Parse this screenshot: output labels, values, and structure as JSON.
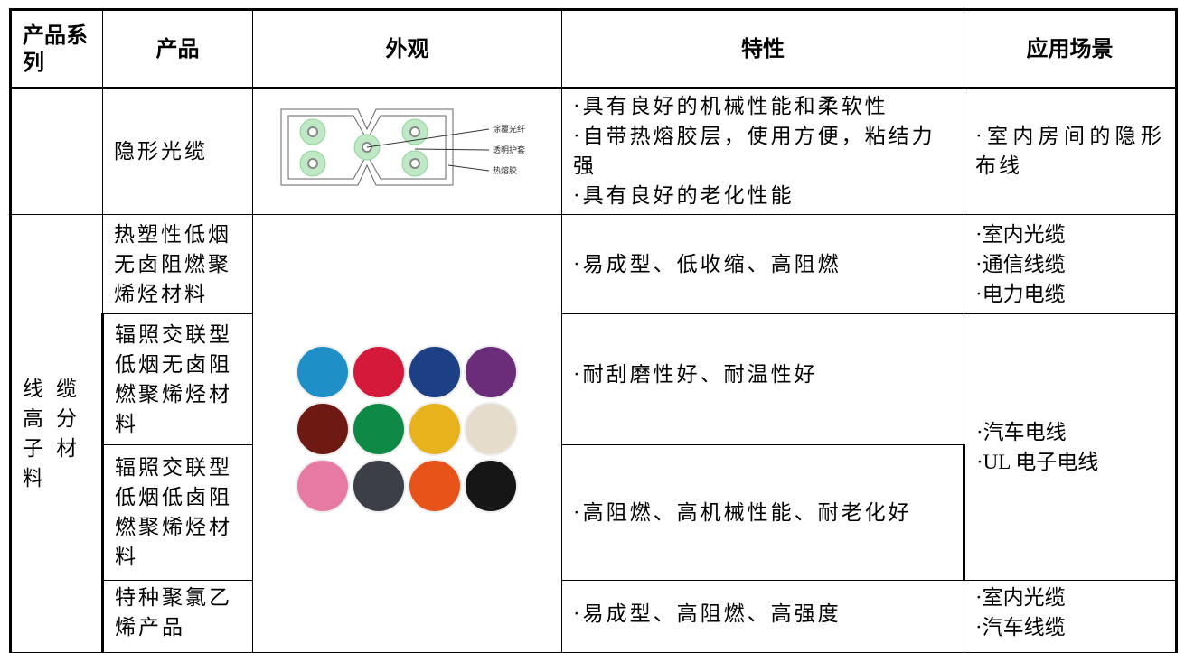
{
  "table": {
    "header": [
      "产品系列",
      "产品",
      "外观",
      "特性",
      "应用场景"
    ],
    "rows": [
      {
        "product": "隐形光缆",
        "appearance_labels": [
          "涂覆光纤",
          "透明护套",
          "热熔胶"
        ],
        "features": [
          "·具有良好的机械性能和柔软性",
          "·自带热熔胶层，使用方便，粘结力强",
          "·具有良好的老化性能"
        ],
        "applications": [
          "·室内房间的隐形布线"
        ]
      },
      {
        "series": "线缆高分子材料",
        "product": "热塑性低烟无卤阻燃聚烯烃材料",
        "features": [
          "·易成型、低收缩、高阻燃"
        ],
        "applications": [
          "·室内光缆",
          "·通信线缆",
          "·电力电缆"
        ]
      },
      {
        "product": "辐照交联型低烟无卤阻燃聚烯烃材料",
        "features": [
          "·耐刮磨性好、耐温性好"
        ],
        "applications": [
          "·汽车电线",
          "·UL 电子电线"
        ]
      },
      {
        "product": "辐照交联型低烟低卤阻燃聚烯烃材料",
        "features": [
          "·高阻燃、高机械性能、耐老化好"
        ]
      },
      {
        "product": "特种聚氯乙烯产品",
        "features": [
          "·易成型、高阻燃、高强度"
        ],
        "applications": [
          "·室内光缆",
          "·汽车线缆"
        ]
      }
    ]
  }
}
